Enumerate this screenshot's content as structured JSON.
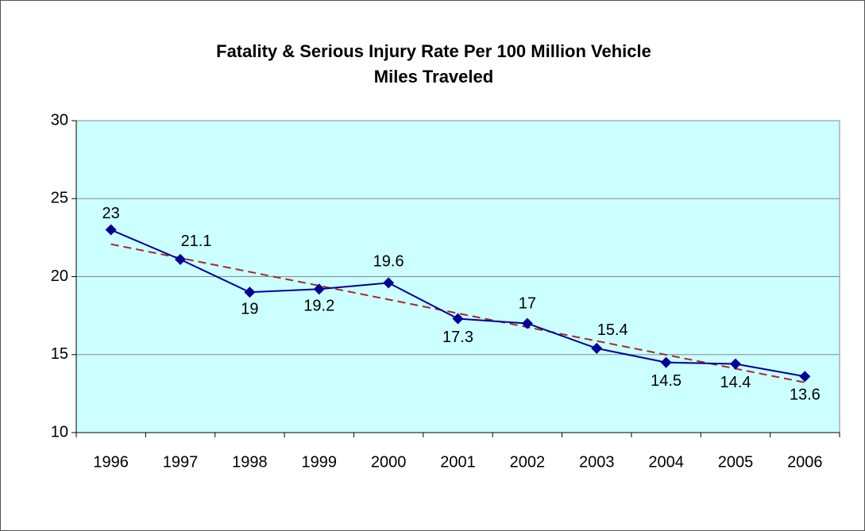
{
  "chart_data": {
    "type": "line",
    "title": [
      "Fatality & Serious Injury Rate Per 100 Million Vehicle",
      "Miles Traveled"
    ],
    "categories": [
      "1996",
      "1997",
      "1998",
      "1999",
      "2000",
      "2001",
      "2002",
      "2003",
      "2004",
      "2005",
      "2006"
    ],
    "series": [
      {
        "color": "#000099",
        "values": [
          23,
          21.1,
          19,
          19.2,
          19.6,
          17.3,
          17,
          15.4,
          14.5,
          14.4,
          13.6
        ]
      }
    ],
    "trendline": {
      "type": "linear",
      "color": "#a52a2a",
      "dashed": true
    },
    "data_labels": true,
    "ylim": [
      10,
      30
    ],
    "yticks": [
      10,
      15,
      20,
      25,
      30
    ],
    "grid": true,
    "plot_background": "#ccffff"
  }
}
